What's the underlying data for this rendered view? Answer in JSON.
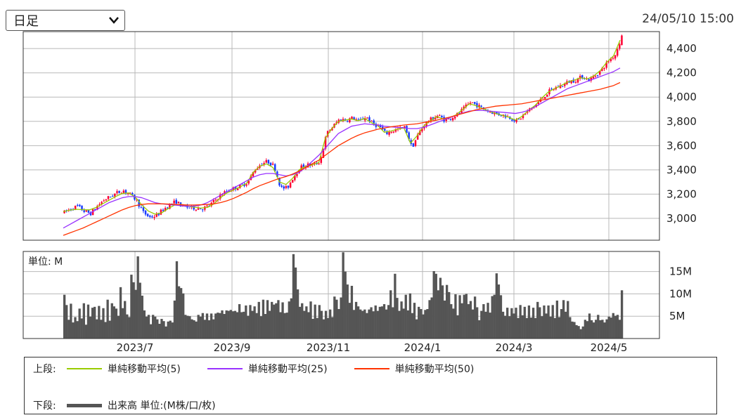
{
  "controls": {
    "period_selected": "日足",
    "chevron_icon": "chevron-down-icon"
  },
  "timestamp": "24/05/10 15:00",
  "volume_unit_label": "単位: M",
  "legend": {
    "upper_tag": "上段:",
    "lower_tag": "下段:",
    "ma5_label": "単純移動平均(5)",
    "ma25_label": "単純移動平均(25)",
    "ma50_label": "単純移動平均(50)",
    "volume_label": "出来高 単位:(M株/口/枚)"
  },
  "colors": {
    "up_candle": "#ff0033",
    "down_candle": "#1a3cff",
    "ma5": "#99cc00",
    "ma25": "#9933ff",
    "ma50": "#ff3300",
    "volume": "#555555",
    "grid": "#b8b8b8"
  },
  "chart_data": [
    {
      "type": "candlestick",
      "panel": "price",
      "x_tick_labels": [
        "2023/7",
        "2023/9",
        "2023/11",
        "2024/1",
        "2024/3",
        "2024/5"
      ],
      "y_tick_labels": [
        "3,000",
        "3,200",
        "3,400",
        "3,600",
        "3,800",
        "4,000",
        "4,200",
        "4,400"
      ],
      "y_ticks": [
        3000,
        3200,
        3400,
        3600,
        3800,
        4000,
        4200,
        4400
      ],
      "ylim": [
        2820,
        4540
      ],
      "grid": true,
      "price_path": [
        3050,
        3080,
        3100,
        3060,
        3040,
        3100,
        3150,
        3180,
        3210,
        3230,
        3200,
        3150,
        3050,
        3010,
        3020,
        3070,
        3110,
        3140,
        3100,
        3090,
        3085,
        3080,
        3100,
        3150,
        3200,
        3230,
        3250,
        3270,
        3300,
        3400,
        3450,
        3470,
        3430,
        3250,
        3250,
        3350,
        3420,
        3440,
        3440,
        3470,
        3700,
        3760,
        3820,
        3810,
        3830,
        3800,
        3840,
        3780,
        3760,
        3700,
        3720,
        3740,
        3750,
        3580,
        3700,
        3780,
        3820,
        3850,
        3810,
        3830,
        3860,
        3910,
        3960,
        3930,
        3900,
        3880,
        3860,
        3850,
        3830,
        3800,
        3850,
        3900,
        3940,
        4000,
        4050,
        4080,
        4100,
        4130,
        4140,
        4170,
        4140,
        4180,
        4230,
        4300,
        4350,
        4500
      ],
      "series": [
        {
          "name": "単純移動平均(5)",
          "values": [
            3055,
            3068,
            3075,
            3072,
            3070,
            3090,
            3120,
            3150,
            3180,
            3205,
            3210,
            3175,
            3110,
            3060,
            3035,
            3045,
            3080,
            3110,
            3115,
            3100,
            3092,
            3085,
            3090,
            3120,
            3170,
            3210,
            3235,
            3260,
            3290,
            3380,
            3430,
            3450,
            3420,
            3300,
            3280,
            3330,
            3400,
            3430,
            3440,
            3460,
            3660,
            3740,
            3800,
            3810,
            3820,
            3805,
            3825,
            3790,
            3765,
            3710,
            3720,
            3735,
            3745,
            3620,
            3680,
            3760,
            3805,
            3840,
            3820,
            3830,
            3855,
            3900,
            3945,
            3930,
            3905,
            3885,
            3865,
            3850,
            3835,
            3810,
            3840,
            3890,
            3930,
            3990,
            4040,
            4070,
            4095,
            4125,
            4140,
            4160,
            4150,
            4175,
            4220,
            4290,
            4340,
            4470
          ]
        },
        {
          "name": "単純移動平均(25)",
          "values": [
            2920,
            2950,
            2980,
            3010,
            3040,
            3070,
            3100,
            3130,
            3150,
            3170,
            3180,
            3180,
            3170,
            3150,
            3130,
            3120,
            3115,
            3110,
            3105,
            3100,
            3100,
            3110,
            3130,
            3160,
            3190,
            3220,
            3250,
            3280,
            3310,
            3340,
            3360,
            3370,
            3370,
            3360,
            3350,
            3360,
            3380,
            3420,
            3470,
            3520,
            3580,
            3640,
            3700,
            3730,
            3760,
            3770,
            3780,
            3775,
            3770,
            3760,
            3755,
            3750,
            3745,
            3740,
            3740,
            3750,
            3770,
            3790,
            3810,
            3830,
            3850,
            3870,
            3885,
            3890,
            3890,
            3885,
            3880,
            3875,
            3870,
            3865,
            3875,
            3890,
            3920,
            3950,
            3980,
            4010,
            4040,
            4070,
            4090,
            4110,
            4130,
            4150,
            4170,
            4190,
            4210,
            4240
          ]
        },
        {
          "name": "単純移動平均(50)",
          "values": [
            2860,
            2880,
            2900,
            2920,
            2945,
            2970,
            2995,
            3020,
            3045,
            3070,
            3090,
            3105,
            3115,
            3120,
            3120,
            3120,
            3118,
            3115,
            3112,
            3110,
            3110,
            3112,
            3115,
            3120,
            3130,
            3145,
            3165,
            3190,
            3215,
            3245,
            3270,
            3290,
            3310,
            3330,
            3345,
            3365,
            3390,
            3420,
            3450,
            3480,
            3520,
            3560,
            3600,
            3630,
            3660,
            3685,
            3705,
            3720,
            3735,
            3745,
            3755,
            3762,
            3770,
            3775,
            3780,
            3790,
            3800,
            3810,
            3822,
            3835,
            3850,
            3865,
            3880,
            3895,
            3905,
            3915,
            3925,
            3930,
            3935,
            3940,
            3945,
            3955,
            3965,
            3975,
            3985,
            3995,
            4005,
            4015,
            4025,
            4035,
            4045,
            4055,
            4065,
            4080,
            4095,
            4120
          ]
        }
      ]
    },
    {
      "type": "bar",
      "panel": "volume",
      "y_tick_labels": [
        "5M",
        "10M",
        "15M"
      ],
      "y_ticks": [
        5,
        10,
        15
      ],
      "ylim": [
        0,
        19.5
      ],
      "grid": true,
      "values": [
        9.8,
        7.5,
        4.2,
        7.8,
        3.6,
        4.8,
        3.9,
        6.7,
        4.5,
        7.9,
        3.1,
        7.6,
        4.9,
        6.9,
        7.1,
        4.3,
        7.3,
        4.2,
        6.8,
        3.7,
        8.7,
        4.0,
        7.9,
        7.2,
        6.7,
        5.1,
        11.5,
        6.8,
        8.4,
        5.4,
        4.8,
        14.3,
        12.6,
        10.9,
        18.4,
        12.5,
        9.6,
        6.3,
        4.9,
        5.3,
        3.2,
        5.3,
        4.9,
        4.3,
        3.3,
        4.4,
        3.9,
        2.7,
        3.8,
        4.0,
        3.6,
        8.5,
        17.3,
        11.7,
        11.3,
        10.1,
        5.3,
        5.1,
        5.0,
        4.3,
        4.1,
        3.8,
        5.3,
        4.9,
        5.7,
        4.2,
        5.6,
        4.1,
        5.6,
        4.3,
        5.6,
        5.8,
        5.7,
        6.3,
        5.5,
        6.3,
        6.2,
        6.4,
        6.1,
        6.2,
        5.9,
        7.7,
        5.9,
        6.0,
        7.4,
        5.1,
        7.5,
        6.2,
        7.2,
        5.7,
        8.2,
        5.0,
        8.7,
        5.5,
        8.6,
        6.2,
        8.2,
        7.6,
        7.9,
        8.6,
        5.9,
        8.1,
        5.7,
        5.8,
        8.3,
        9.0,
        18.9,
        15.9,
        11.0,
        7.1,
        7.9,
        6.2,
        7.2,
        5.9,
        8.3,
        4.4,
        7.6,
        4.6,
        7.5,
        6.2,
        4.3,
        6.2,
        4.6,
        6.5,
        4.8,
        9.4,
        8.7,
        6.6,
        9.2,
        19.3,
        15.0,
        12.1,
        8.0,
        11.8,
        6.4,
        8.2,
        7.2,
        6.5,
        6.2,
        6.5,
        5.7,
        6.5,
        7.0,
        6.1,
        7.4,
        6.2,
        7.1,
        7.2,
        7.7,
        6.5,
        7.5,
        10.8,
        7.0,
        14.5,
        9.1,
        6.2,
        8.3,
        6.7,
        9.8,
        6.3,
        10.1,
        5.7,
        8.0,
        4.3,
        7.1,
        6.6,
        5.4,
        6.4,
        6.6,
        8.6,
        9.2,
        15.1,
        14.5,
        10.8,
        13.6,
        11.9,
        8.5,
        12.0,
        10.4,
        7.7,
        6.7,
        9.9,
        5.2,
        9.7,
        7.9,
        9.8,
        10.0,
        7.7,
        8.4,
        6.5,
        9.4,
        7.0,
        4.1,
        6.2,
        7.7,
        6.0,
        8.0,
        5.8,
        9.5,
        9.8,
        14.6,
        12.1,
        9.7,
        6.0,
        5.1,
        6.9,
        5.0,
        6.8,
        5.6,
        6.9,
        4.6,
        7.5,
        5.2,
        7.1,
        4.6,
        7.4,
        4.7,
        6.9,
        4.6,
        8.2,
        7.0,
        5.0,
        7.4,
        5.6,
        7.4,
        4.9,
        7.5,
        4.6,
        8.5,
        4.8,
        6.6,
        8.6,
        6.0,
        8.4,
        4.8,
        3.8,
        3.7,
        3.0,
        2.8,
        2.1,
        2.7,
        4.2,
        3.9,
        5.6,
        4.1,
        3.6,
        4.2,
        5.3,
        4.1,
        4.2,
        3.6,
        4.3,
        4.9,
        4.7,
        5.7,
        5.1,
        5.3,
        4.2,
        10.8
      ]
    }
  ]
}
